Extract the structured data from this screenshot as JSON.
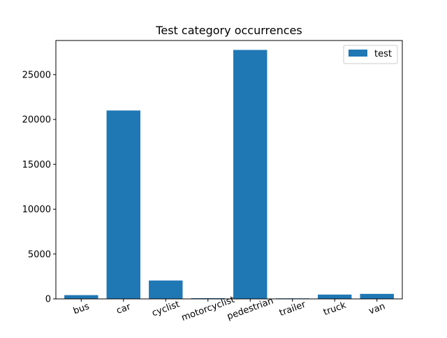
{
  "chart_data": {
    "type": "bar",
    "title": "Test category occurrences",
    "xlabel": "",
    "ylabel": "",
    "categories": [
      "bus",
      "car",
      "cyclist",
      "motorcyclist",
      "pedestrian",
      "trailer",
      "truck",
      "van"
    ],
    "series": [
      {
        "name": "test",
        "color": "#1f77b4",
        "values": [
          420,
          21000,
          2050,
          80,
          27750,
          60,
          480,
          560
        ]
      }
    ],
    "ylim": [
      0,
      28800
    ],
    "yticks": [
      0,
      5000,
      10000,
      15000,
      20000,
      25000
    ],
    "ytick_labels": [
      "0",
      "5000",
      "10000",
      "15000",
      "20000",
      "25000"
    ],
    "grid": false,
    "legend": {
      "position": "top-right",
      "entries": [
        "test"
      ]
    },
    "xtick_rotation": "slanted"
  }
}
